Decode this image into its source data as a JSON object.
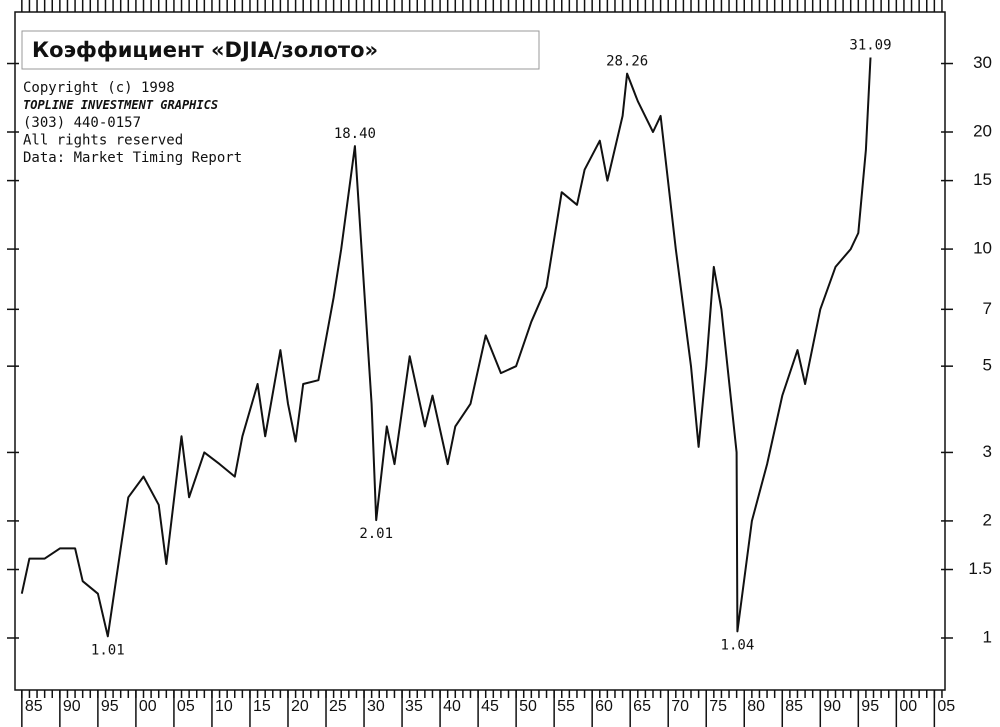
{
  "chart_data": {
    "type": "line",
    "title": "Коэффициент «DJIA/золото»",
    "annotations": [
      "Copyright (c) 1998",
      "TOPLINE INVESTMENT GRAPHICS",
      "(303) 440-0157",
      "All rights reserved",
      "Data: Market Timing Report"
    ],
    "log_scale": true,
    "color": "#111111",
    "x": [
      1885,
      1886,
      1888,
      1890,
      1892,
      1893,
      1895,
      1896.3,
      1898,
      1899,
      1901,
      1903,
      1904,
      1906,
      1907,
      1909,
      1911,
      1913,
      1914,
      1916,
      1917,
      1919,
      1920,
      1921,
      1922,
      1924,
      1926,
      1927,
      1928.8,
      1930,
      1931,
      1931.6,
      1933,
      1934,
      1936,
      1938,
      1939,
      1941,
      1942,
      1944,
      1946,
      1948,
      1950,
      1952,
      1954,
      1956,
      1958,
      1959,
      1961,
      1962,
      1964,
      1964.6,
      1966,
      1968,
      1969,
      1971,
      1973,
      1974,
      1975,
      1976,
      1977,
      1979,
      1979.1,
      1981,
      1983,
      1985,
      1987,
      1988,
      1990,
      1992,
      1994,
      1995,
      1996,
      1996.6
    ],
    "values": [
      1.3,
      1.6,
      1.6,
      1.7,
      1.7,
      1.4,
      1.3,
      1.01,
      1.7,
      2.3,
      2.6,
      2.2,
      1.55,
      3.3,
      2.3,
      3.0,
      2.8,
      2.6,
      3.3,
      4.5,
      3.3,
      5.5,
      4.0,
      3.2,
      4.5,
      4.6,
      7.5,
      10,
      18.4,
      8,
      4,
      2.01,
      3.5,
      2.8,
      5.3,
      3.5,
      4.2,
      2.8,
      3.5,
      4.0,
      6.0,
      4.8,
      5.0,
      6.5,
      8.0,
      14,
      13,
      16,
      19,
      15,
      22,
      28.26,
      24,
      20,
      22,
      10,
      5,
      3.1,
      5,
      9,
      7,
      3,
      1.04,
      2,
      2.8,
      4.2,
      5.5,
      4.5,
      7,
      9,
      10,
      11,
      18,
      31.09
    ],
    "value_labels": [
      null,
      null,
      null,
      null,
      null,
      null,
      null,
      "1.01",
      null,
      null,
      null,
      null,
      null,
      null,
      null,
      null,
      null,
      null,
      null,
      null,
      null,
      null,
      null,
      null,
      null,
      null,
      null,
      null,
      "18.40",
      null,
      null,
      "2.01",
      null,
      null,
      null,
      null,
      null,
      null,
      null,
      null,
      null,
      null,
      null,
      null,
      null,
      null,
      null,
      null,
      null,
      null,
      null,
      "28.26",
      null,
      null,
      null,
      null,
      null,
      null,
      null,
      null,
      null,
      null,
      "1.04",
      null,
      null,
      null,
      null,
      null,
      null,
      null,
      null,
      null,
      null,
      "31.09"
    ],
    "xlim": [
      1884.1,
      2006.4
    ],
    "ylim": [
      0.735,
      40.7
    ],
    "xticks": [
      {
        "value": 1885,
        "label": "85"
      },
      {
        "value": 1890,
        "label": "90"
      },
      {
        "value": 1895,
        "label": "95"
      },
      {
        "value": 1900,
        "label": "00"
      },
      {
        "value": 1905,
        "label": "05"
      },
      {
        "value": 1910,
        "label": "10"
      },
      {
        "value": 1915,
        "label": "15"
      },
      {
        "value": 1920,
        "label": "20"
      },
      {
        "value": 1925,
        "label": "25"
      },
      {
        "value": 1930,
        "label": "30"
      },
      {
        "value": 1935,
        "label": "35"
      },
      {
        "value": 1940,
        "label": "40"
      },
      {
        "value": 1945,
        "label": "45"
      },
      {
        "value": 1950,
        "label": "50"
      },
      {
        "value": 1955,
        "label": "55"
      },
      {
        "value": 1960,
        "label": "60"
      },
      {
        "value": 1965,
        "label": "65"
      },
      {
        "value": 1970,
        "label": "70"
      },
      {
        "value": 1975,
        "label": "75"
      },
      {
        "value": 1980,
        "label": "80"
      },
      {
        "value": 1985,
        "label": "85"
      },
      {
        "value": 1990,
        "label": "90"
      },
      {
        "value": 1995,
        "label": "95"
      },
      {
        "value": 2000,
        "label": "00"
      },
      {
        "value": 2005,
        "label": "05"
      }
    ],
    "yticks": [
      1,
      1.5,
      2,
      3,
      5,
      7,
      10,
      15,
      20,
      30
    ]
  }
}
